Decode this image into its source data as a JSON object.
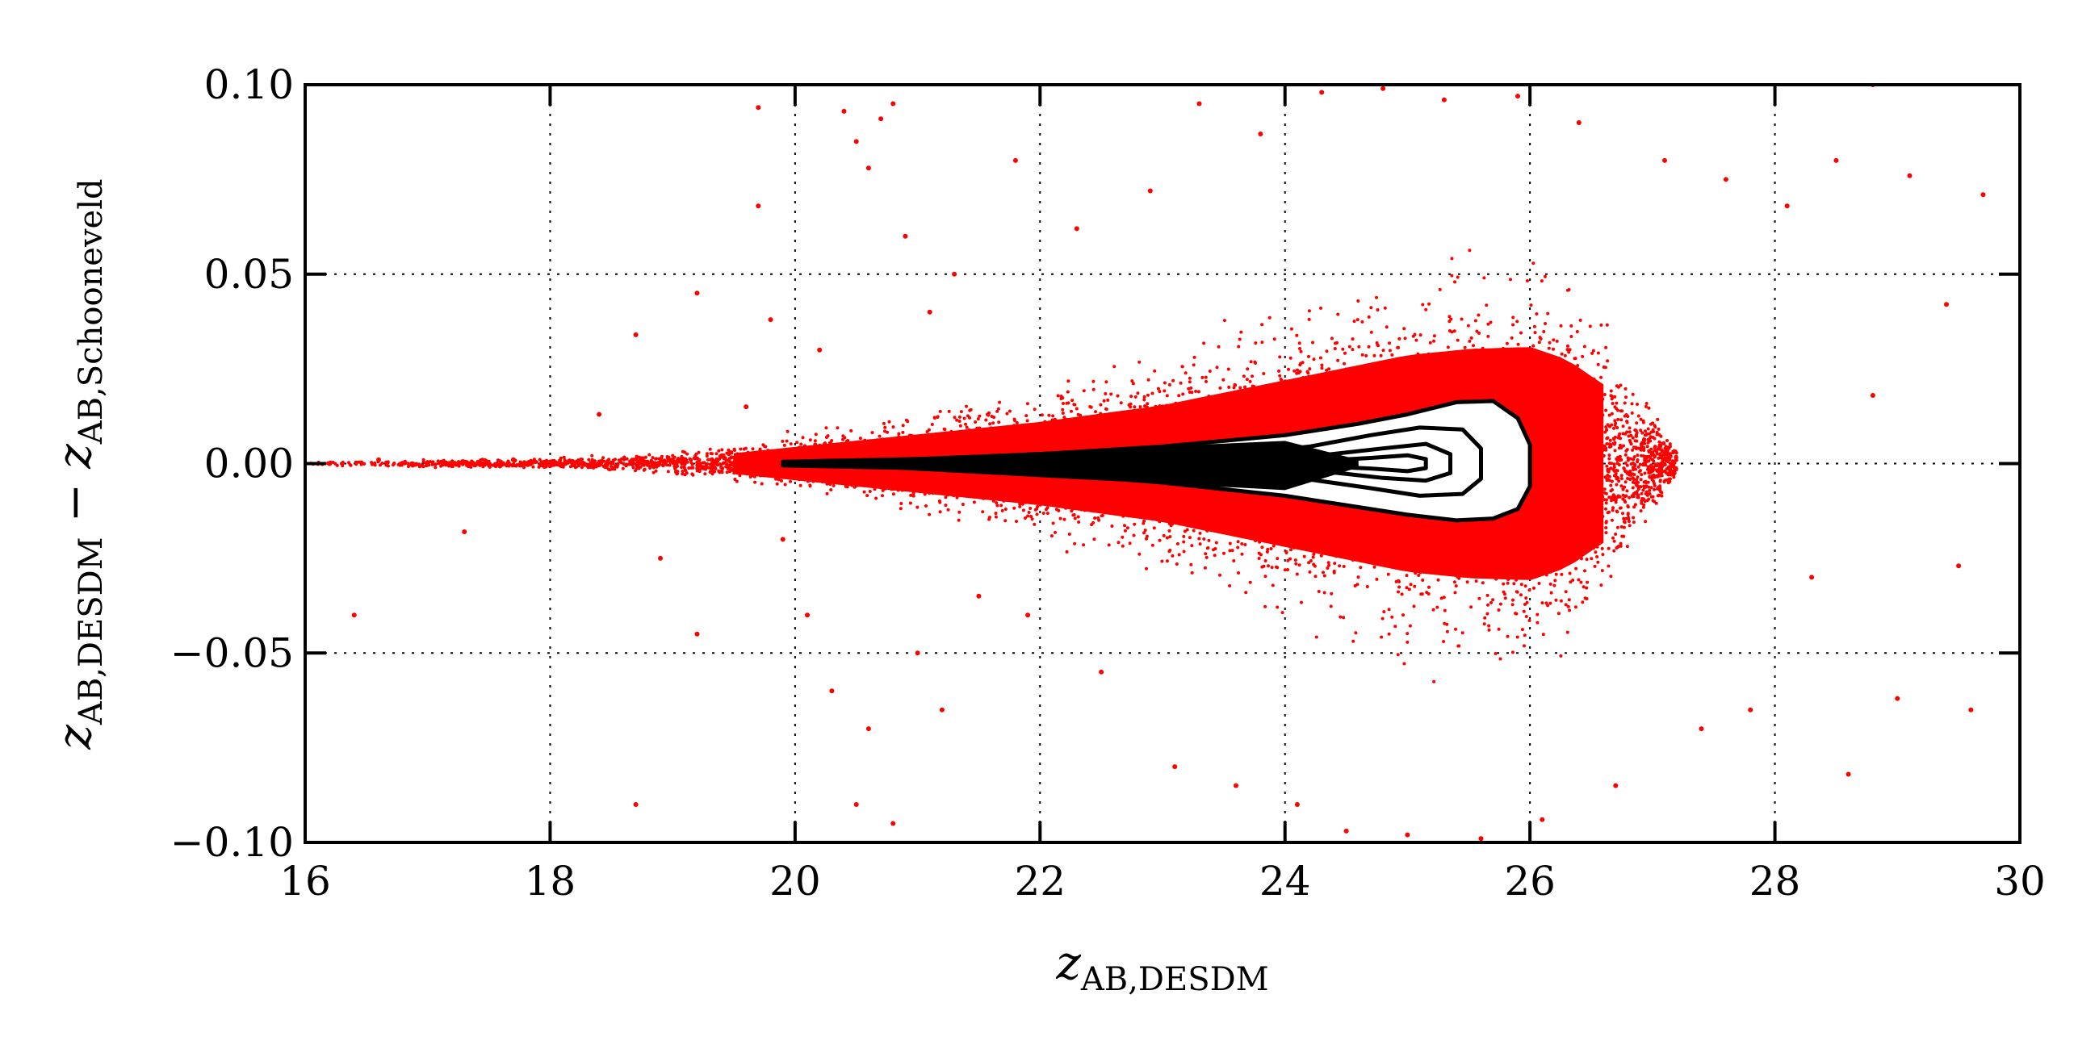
{
  "chart_data": {
    "type": "scatter",
    "title": "",
    "xlabel": {
      "main": "z",
      "sub": "AB,DESDM"
    },
    "ylabel": {
      "main": "z",
      "sub": "AB,DESDM",
      "minus": "−",
      "main2": "z",
      "sub2": "AB,Schooneveld"
    },
    "xlim": [
      16,
      30
    ],
    "ylim": [
      -0.1,
      0.1
    ],
    "xticks": [
      16,
      18,
      20,
      22,
      24,
      26,
      28,
      30
    ],
    "yticks": [
      -0.1,
      -0.05,
      0.0,
      0.05,
      0.1
    ],
    "xtick_labels": [
      "16",
      "18",
      "20",
      "22",
      "24",
      "26",
      "28",
      "30"
    ],
    "ytick_labels": [
      "−0.10",
      "−0.05",
      "0.00",
      "0.05",
      "0.10"
    ],
    "grid": true,
    "point_color": "#ff0000",
    "contour_color": "#000000",
    "points": [
      [
        16.2,
        0.0
      ],
      [
        16.4,
        -0.04
      ],
      [
        16.6,
        0.001
      ],
      [
        17.0,
        0.0
      ],
      [
        17.3,
        -0.018
      ],
      [
        17.7,
        0.001
      ],
      [
        18.4,
        0.013
      ],
      [
        18.7,
        0.034
      ],
      [
        18.7,
        -0.09
      ],
      [
        18.9,
        -0.025
      ],
      [
        19.2,
        0.045
      ],
      [
        19.2,
        -0.045
      ],
      [
        19.6,
        0.015
      ],
      [
        19.7,
        0.094
      ],
      [
        19.7,
        0.068
      ],
      [
        19.8,
        0.038
      ],
      [
        19.9,
        -0.02
      ],
      [
        20.1,
        -0.04
      ],
      [
        20.2,
        0.03
      ],
      [
        20.3,
        -0.06
      ],
      [
        20.4,
        0.093
      ],
      [
        20.5,
        0.085
      ],
      [
        20.5,
        -0.09
      ],
      [
        20.6,
        0.078
      ],
      [
        20.6,
        -0.07
      ],
      [
        20.7,
        0.091
      ],
      [
        20.8,
        0.095
      ],
      [
        20.8,
        -0.095
      ],
      [
        20.9,
        0.06
      ],
      [
        21.0,
        -0.05
      ],
      [
        21.1,
        0.04
      ],
      [
        21.2,
        -0.065
      ],
      [
        21.3,
        0.05
      ],
      [
        21.5,
        -0.035
      ],
      [
        21.8,
        0.08
      ],
      [
        21.9,
        -0.04
      ],
      [
        22.3,
        0.062
      ],
      [
        22.5,
        -0.055
      ],
      [
        22.9,
        0.072
      ],
      [
        23.1,
        -0.08
      ],
      [
        23.3,
        0.095
      ],
      [
        23.6,
        -0.085
      ],
      [
        23.8,
        0.087
      ],
      [
        24.1,
        -0.09
      ],
      [
        24.3,
        0.098
      ],
      [
        24.5,
        -0.097
      ],
      [
        24.8,
        0.099
      ],
      [
        25.0,
        -0.098
      ],
      [
        25.3,
        0.096
      ],
      [
        25.6,
        -0.099
      ],
      [
        25.9,
        0.097
      ],
      [
        26.1,
        -0.094
      ],
      [
        26.4,
        0.09
      ],
      [
        26.7,
        -0.085
      ],
      [
        27.1,
        0.08
      ],
      [
        27.4,
        -0.07
      ],
      [
        27.6,
        0.075
      ],
      [
        27.8,
        -0.065
      ],
      [
        28.1,
        0.068
      ],
      [
        28.3,
        -0.03
      ],
      [
        28.5,
        0.08
      ],
      [
        28.6,
        -0.082
      ],
      [
        28.8,
        0.1
      ],
      [
        28.8,
        0.018
      ],
      [
        29.0,
        -0.062
      ],
      [
        29.1,
        0.076
      ],
      [
        29.4,
        0.042
      ],
      [
        29.5,
        -0.027
      ],
      [
        29.6,
        -0.065
      ],
      [
        29.7,
        0.071
      ]
    ],
    "density_envelope": {
      "x": [
        16.0,
        17.0,
        18.0,
        19.0,
        19.5,
        20.0,
        20.5,
        21.0,
        21.5,
        22.0,
        22.5,
        23.0,
        23.5,
        24.0,
        24.5,
        25.0,
        25.5,
        26.0,
        26.3,
        26.6,
        26.9,
        27.2
      ],
      "halfwidth": [
        0.0006,
        0.001,
        0.0015,
        0.003,
        0.005,
        0.008,
        0.011,
        0.014,
        0.017,
        0.02,
        0.024,
        0.028,
        0.034,
        0.04,
        0.046,
        0.052,
        0.055,
        0.056,
        0.05,
        0.038,
        0.02,
        0.004
      ]
    },
    "contours": [
      {
        "x": [
          19.9,
          21.0,
          22.0,
          23.0,
          24.0,
          24.6,
          25.0,
          25.4,
          25.7,
          25.9,
          26.0,
          26.0,
          25.9,
          25.7,
          25.4,
          25.0,
          24.6,
          24.0,
          23.0,
          22.0,
          21.0,
          19.9
        ],
        "y": [
          0.0005,
          0.0012,
          0.0025,
          0.0045,
          0.0075,
          0.0105,
          0.013,
          0.0162,
          0.0165,
          0.012,
          0.005,
          -0.006,
          -0.012,
          -0.0145,
          -0.015,
          -0.0135,
          -0.0115,
          -0.0085,
          -0.005,
          -0.0025,
          -0.0012,
          -0.0005
        ]
      },
      {
        "x": [
          22.8,
          23.5,
          24.2,
          24.7,
          25.1,
          25.45,
          25.6,
          25.6,
          25.45,
          25.1,
          24.7,
          24.2,
          23.5,
          22.8
        ],
        "y": [
          0.001,
          0.002,
          0.0045,
          0.0075,
          0.0095,
          0.009,
          0.004,
          -0.004,
          -0.008,
          -0.0085,
          -0.0065,
          -0.0042,
          -0.002,
          -0.001
        ]
      },
      {
        "x": [
          23.6,
          24.3,
          24.8,
          25.15,
          25.35,
          25.35,
          25.15,
          24.8,
          24.3,
          23.6
        ],
        "y": [
          0.0008,
          0.0022,
          0.004,
          0.0052,
          0.0025,
          -0.0025,
          -0.0045,
          -0.0038,
          -0.002,
          -0.0008
        ]
      },
      {
        "x": [
          24.2,
          24.7,
          25.0,
          25.15,
          25.15,
          25.0,
          24.7,
          24.2
        ],
        "y": [
          0.0006,
          0.0015,
          0.0022,
          0.0012,
          -0.0012,
          -0.002,
          -0.0013,
          -0.0006
        ]
      }
    ]
  }
}
